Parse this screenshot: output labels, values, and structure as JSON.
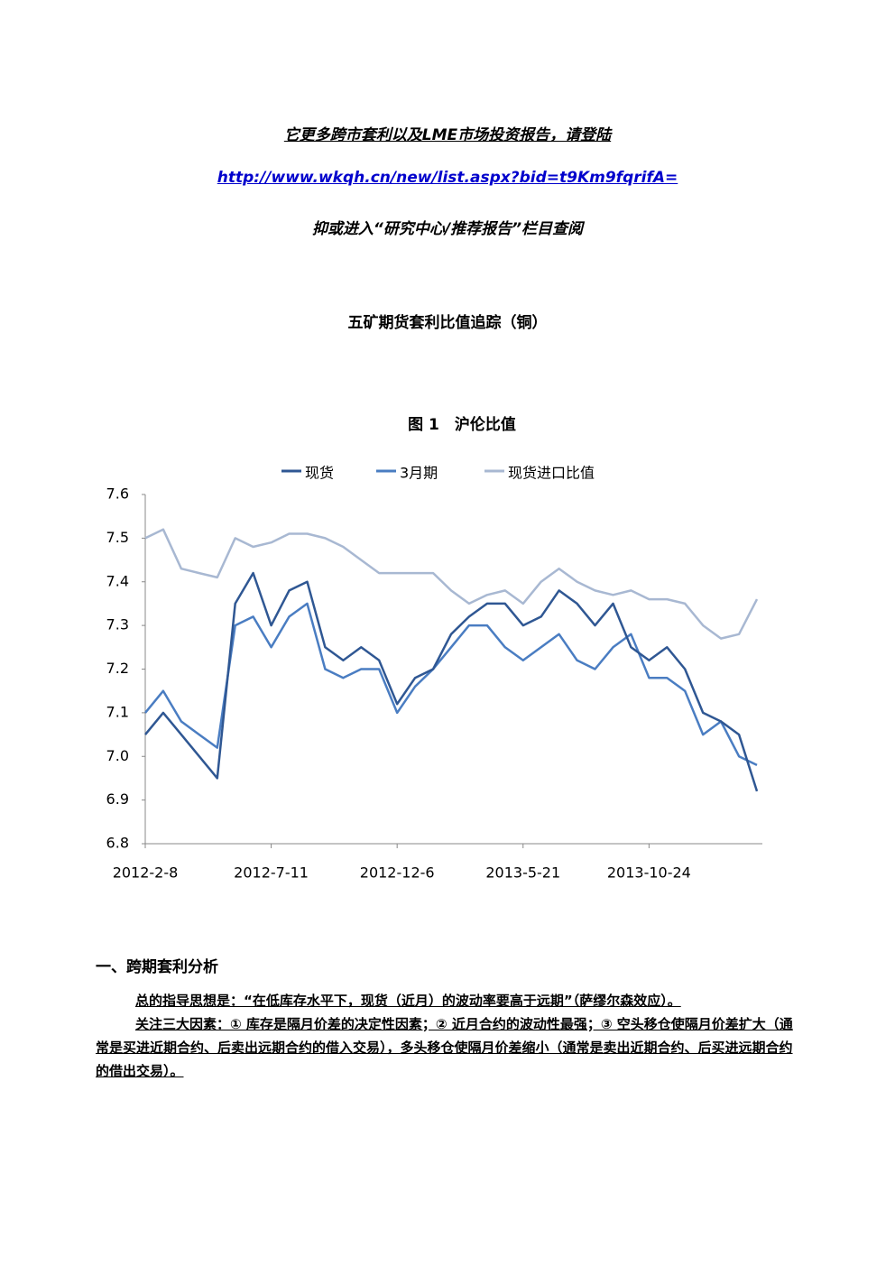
{
  "header": {
    "lines": [
      "它更多跨市套利以及LME市场投资报告，请登陆",
      "http://www.wkqh.cn/new/list.aspx?bid=t9Km9fqrifA=",
      "抑或进入“研究中心/推荐报告”栏目查阅"
    ]
  },
  "title": "五矿期货套利比值追踪（铜）",
  "chart_data": {
    "type": "line",
    "title": "图 1　沪伦比值",
    "categories": [
      "2012-2-8",
      null,
      null,
      null,
      null,
      null,
      null,
      "2012-7-11",
      null,
      null,
      null,
      null,
      null,
      null,
      "2012-12-6",
      null,
      null,
      null,
      null,
      null,
      null,
      "2013-5-21",
      null,
      null,
      null,
      null,
      null,
      null,
      "2013-10-24",
      null,
      null,
      null,
      null,
      null,
      null
    ],
    "series": [
      {
        "name": "现货",
        "color": "#2f5793",
        "values": [
          7.05,
          7.1,
          7.05,
          7.0,
          6.95,
          7.35,
          7.42,
          7.3,
          7.38,
          7.4,
          7.25,
          7.22,
          7.25,
          7.22,
          7.12,
          7.18,
          7.2,
          7.28,
          7.32,
          7.35,
          7.35,
          7.3,
          7.32,
          7.38,
          7.35,
          7.3,
          7.35,
          7.25,
          7.22,
          7.25,
          7.2,
          7.1,
          7.08,
          7.05,
          6.92
        ]
      },
      {
        "name": "3月期",
        "color": "#4a7dc2",
        "values": [
          7.1,
          7.15,
          7.08,
          7.05,
          7.02,
          7.3,
          7.32,
          7.25,
          7.32,
          7.35,
          7.2,
          7.18,
          7.2,
          7.2,
          7.1,
          7.16,
          7.2,
          7.25,
          7.3,
          7.3,
          7.25,
          7.22,
          7.25,
          7.28,
          7.22,
          7.2,
          7.25,
          7.28,
          7.18,
          7.18,
          7.15,
          7.05,
          7.08,
          7.0,
          6.98
        ]
      },
      {
        "name": "现货进口比值",
        "color": "#a8b8d2",
        "values": [
          7.5,
          7.52,
          7.43,
          7.42,
          7.41,
          7.5,
          7.48,
          7.49,
          7.51,
          7.51,
          7.5,
          7.48,
          7.45,
          7.42,
          7.42,
          7.42,
          7.42,
          7.38,
          7.35,
          7.37,
          7.38,
          7.35,
          7.4,
          7.43,
          7.4,
          7.38,
          7.37,
          7.38,
          7.36,
          7.36,
          7.35,
          7.3,
          7.27,
          7.28,
          7.36
        ]
      }
    ],
    "ylim": [
      6.8,
      7.6
    ],
    "yticks": [
      6.8,
      6.9,
      {
        "value": 7,
        "label": "7.0"
      },
      7.1,
      7.2,
      7.3,
      7.4,
      7.5,
      7.6
    ]
  },
  "section": {
    "heading": "一、跨期套利分析",
    "paragraphs": [
      "总的指导思想是：“在低库存水平下，现货（近月）的波动率要高于远期”（萨缪尔森效应）。",
      "关注三大因素：① 库存是隔月价差的决定性因素；② 近月合约的波动性最强；③ 空头移仓使隔月价差扩大（通常是买进近期合约、后卖出远期合约的借入交易），多头移仓使隔月价差缩小（通常是卖出近期合约、后买进远期合约的借出交易）。"
    ]
  }
}
